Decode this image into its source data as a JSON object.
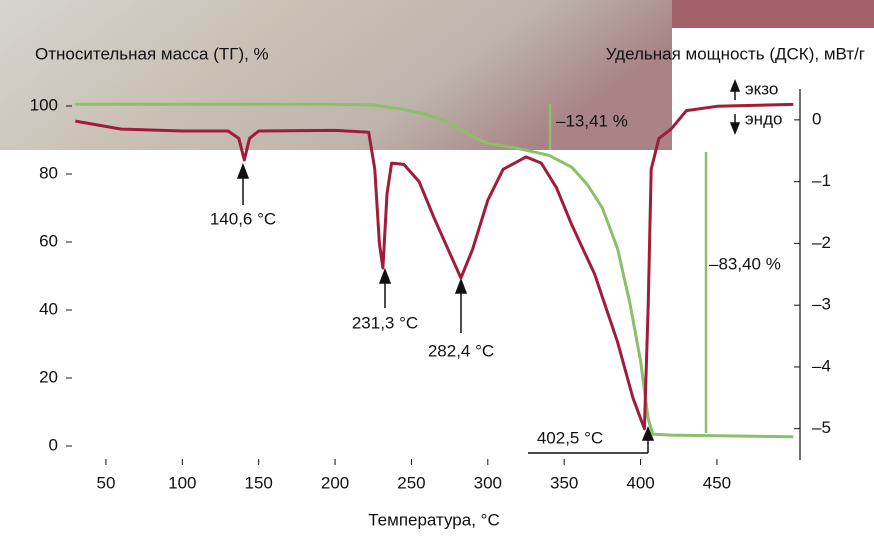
{
  "chart_data": {
    "type": "line",
    "y_label": "Относительная масса (ТГ), %",
    "y2_label": "Удельная мощность (ДСК), мВт/г",
    "x_label": "Температура, °С",
    "xlim": [
      30,
      500
    ],
    "xticks": [
      50,
      100,
      150,
      200,
      250,
      300,
      350,
      400,
      450
    ],
    "ylim": [
      -4,
      105
    ],
    "yticks": [
      0,
      20,
      40,
      60,
      80,
      100
    ],
    "y2lim": [
      -5.5,
      0.5
    ],
    "y2ticks": [
      {
        "value": 0,
        "label": "0"
      },
      {
        "value": -1,
        "label": "–1"
      },
      {
        "value": -2,
        "label": "–2"
      },
      {
        "value": -3,
        "label": "–3"
      },
      {
        "value": -4,
        "label": "–4"
      },
      {
        "value": -5,
        "label": "–5"
      }
    ],
    "series": [
      {
        "color": "#8cbf6a",
        "x": [
          30,
          100,
          200,
          225,
          245,
          260,
          275,
          290,
          300,
          320,
          340,
          355,
          365,
          375,
          385,
          393,
          400,
          405,
          408,
          420,
          500
        ],
        "values": [
          100.5,
          100.5,
          100.5,
          100.3,
          99,
          97.5,
          95,
          91,
          89,
          87.5,
          85.5,
          82,
          77,
          70,
          58,
          42,
          25,
          8,
          3.5,
          3.2,
          2.7
        ]
      },
      {
        "color": "#a01c3a",
        "axis": "y2",
        "x": [
          30,
          60,
          100,
          130,
          137,
          140.6,
          144,
          150,
          200,
          222,
          226,
          229,
          231.3,
          234,
          237,
          245,
          255,
          265,
          275,
          282.4,
          290,
          300,
          310,
          325,
          335,
          345,
          355,
          370,
          385,
          395,
          402.5,
          405,
          407,
          412,
          420,
          430,
          450,
          500
        ],
        "values": [
          -0.02,
          -0.15,
          -0.18,
          -0.18,
          -0.3,
          -0.65,
          -0.3,
          -0.18,
          -0.17,
          -0.2,
          -0.8,
          -2.0,
          -2.4,
          -1.2,
          -0.7,
          -0.72,
          -1.0,
          -1.6,
          -2.15,
          -2.56,
          -2.1,
          -1.3,
          -0.8,
          -0.6,
          -0.7,
          -1.1,
          -1.7,
          -2.5,
          -3.6,
          -4.5,
          -5.0,
          -3.0,
          -0.8,
          -0.3,
          -0.15,
          0.15,
          0.22,
          0.25
        ]
      }
    ],
    "annotations": [
      "140,6 °C",
      "231,3 °C",
      "282,4 °C",
      "402,5 °C",
      "–13,41 %",
      "–83,40 %",
      "экзо",
      "эндо"
    ]
  }
}
